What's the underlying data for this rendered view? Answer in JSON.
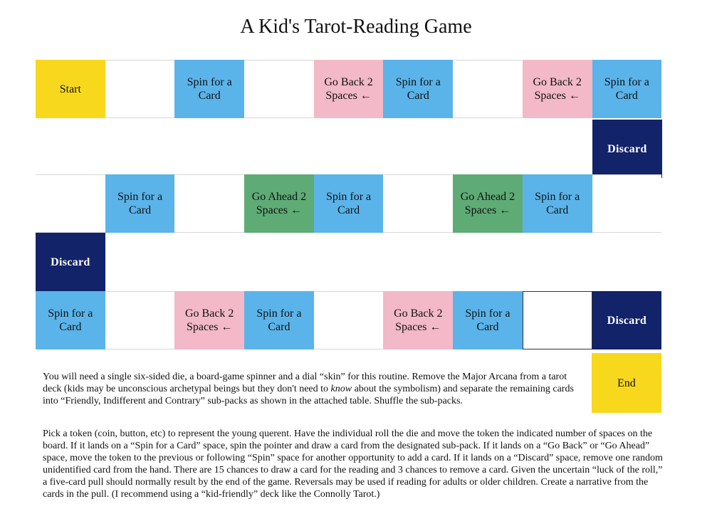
{
  "title": "A Kid's Tarot-Reading Game",
  "board": {
    "row1": [
      {
        "label": "Start",
        "color": "yellow"
      },
      {
        "label": "",
        "color": "white"
      },
      {
        "label": "Spin for a Card",
        "color": "blue"
      },
      {
        "label": "",
        "color": "white"
      },
      {
        "label": "Go Back 2 Spaces ←",
        "color": "pink"
      },
      {
        "label": "Spin for a Card",
        "color": "blue"
      },
      {
        "label": "",
        "color": "white"
      },
      {
        "label": "Go Back 2 Spaces ←",
        "color": "pink"
      },
      {
        "label": "Spin for a Card",
        "color": "blue"
      }
    ],
    "discard_right": "Discard",
    "row2": [
      {
        "label": "",
        "color": "white"
      },
      {
        "label": "Spin for a Card",
        "color": "blue"
      },
      {
        "label": "",
        "color": "white"
      },
      {
        "label": "Go Ahead 2 Spaces ←",
        "color": "green"
      },
      {
        "label": "Spin for a Card",
        "color": "blue"
      },
      {
        "label": "",
        "color": "white"
      },
      {
        "label": "Go Ahead 2 Spaces ←",
        "color": "green"
      },
      {
        "label": "Spin for a Card",
        "color": "blue"
      },
      {
        "label": "",
        "color": "white"
      }
    ],
    "discard_left": "Discard",
    "row3": [
      {
        "label": "Spin for a Card",
        "color": "blue"
      },
      {
        "label": "",
        "color": "white"
      },
      {
        "label": "Go Back 2 Spaces ←",
        "color": "pink"
      },
      {
        "label": "Spin for a Card",
        "color": "blue"
      },
      {
        "label": "",
        "color": "white"
      },
      {
        "label": "Go Back 2 Spaces ←",
        "color": "pink"
      },
      {
        "label": "Spin for a Card",
        "color": "blue"
      },
      {
        "label": "",
        "color": "white"
      },
      {
        "label": "Discard",
        "color": "navy"
      }
    ],
    "end": "End"
  },
  "colors": {
    "yellow": "#f7d81c",
    "blue": "#5ab4ea",
    "pink": "#f3b9c8",
    "green": "#5eab76",
    "navy": "#12236a",
    "white": "#ffffff"
  },
  "instructions": {
    "p1_a": "You will need a single six-sided die, a board-game spinner and a dial “skin” for this routine. Remove the Major Arcana from a tarot deck (kids may be unconscious archetypal beings but they don't need to ",
    "p1_em": "know",
    "p1_b": " about the symbolism) and separate the remaining cards into “Friendly, Indifferent and Contrary” sub-packs as shown in the attached table. Shuffle the sub-packs.",
    "p2": "Pick a token (coin, button, etc) to represent the young querent. Have the individual roll the die and move the token the indicated number of spaces on the board. If it lands on a “Spin for a Card” space, spin the pointer and draw a card from the designated sub-pack. If it lands on a “Go Back” or “Go Ahead” space, move the token to the previous or following “Spin” space for another opportunity to add a card. If it lands on a “Discard” space, remove one random unidentified card from the hand. There are 15 chances to draw a card for the reading and 3 chances to remove a card. Given the uncertain “luck of the roll,” a five-card pull should normally result by the end of the game. Reversals may be used if reading for adults or older children. Create a narrative from the cards in the pull. (I recommend using a “kid-friendly” deck like the Connolly Tarot.)"
  }
}
